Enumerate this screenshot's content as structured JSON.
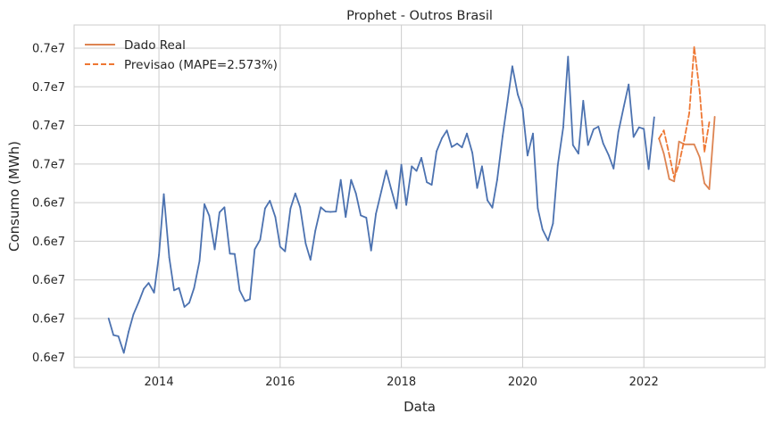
{
  "chart_data": {
    "type": "line",
    "title": "Prophet - Outros Brasil",
    "xlabel": "Data",
    "ylabel": "Consumo (MWh)",
    "x_ticks": [
      {
        "value": 2014,
        "label": "2014"
      },
      {
        "value": 2016,
        "label": "2016"
      },
      {
        "value": 2018,
        "label": "2018"
      },
      {
        "value": 2020,
        "label": "2020"
      },
      {
        "value": 2022,
        "label": "2022"
      }
    ],
    "y_ticks": [
      {
        "value": 0,
        "label": "0.6e7"
      },
      {
        "value": 1,
        "label": "0.6e7"
      },
      {
        "value": 2,
        "label": "0.6e7"
      },
      {
        "value": 3,
        "label": "0.6e7"
      },
      {
        "value": 4,
        "label": "0.6e7"
      },
      {
        "value": 5,
        "label": "0.7e7"
      },
      {
        "value": 6,
        "label": "0.7e7"
      },
      {
        "value": 7,
        "label": "0.7e7"
      },
      {
        "value": 8,
        "label": "0.7e7"
      }
    ],
    "xlim": [
      2012.6,
      2024.0
    ],
    "ylim": [
      -0.27,
      8.6
    ],
    "grid": true,
    "legend_position": "top-left",
    "legend": [
      {
        "label": "Dado Real",
        "style": "solid",
        "color": "#dd8452"
      },
      {
        "label": "Previsao (MAPE=2.573%)",
        "style": "dashed",
        "color": "#ee7733"
      }
    ],
    "series": [
      {
        "style": "solid",
        "color": "#4c72b0",
        "x": [
          2013.17,
          2013.25,
          2013.33,
          2013.42,
          2013.5,
          2013.58,
          2013.67,
          2013.75,
          2013.83,
          2013.92,
          2014.0,
          2014.08,
          2014.17,
          2014.25,
          2014.33,
          2014.42,
          2014.5,
          2014.58,
          2014.67,
          2014.75,
          2014.83,
          2014.92,
          2015.0,
          2015.08,
          2015.17,
          2015.25,
          2015.33,
          2015.42,
          2015.5,
          2015.58,
          2015.67,
          2015.75,
          2015.83,
          2015.92,
          2016.0,
          2016.08,
          2016.17,
          2016.25,
          2016.33,
          2016.42,
          2016.5,
          2016.58,
          2016.67,
          2016.75,
          2016.83,
          2016.92,
          2017.0,
          2017.08,
          2017.17,
          2017.25,
          2017.33,
          2017.42,
          2017.5,
          2017.58,
          2017.67,
          2017.75,
          2017.83,
          2017.92,
          2018.0,
          2018.08,
          2018.17,
          2018.25,
          2018.33,
          2018.42,
          2018.5,
          2018.58,
          2018.67,
          2018.75,
          2018.83,
          2018.92,
          2019.0,
          2019.08,
          2019.17,
          2019.25,
          2019.33,
          2019.42,
          2019.5,
          2019.58,
          2019.67,
          2019.75,
          2019.83,
          2019.92,
          2020.0,
          2020.08,
          2020.17,
          2020.25,
          2020.33,
          2020.42,
          2020.5,
          2020.58,
          2020.67,
          2020.75,
          2020.83,
          2020.92,
          2021.0,
          2021.08,
          2021.17,
          2021.25,
          2021.33,
          2021.42,
          2021.5,
          2021.58,
          2021.67,
          2021.75,
          2021.83,
          2021.92,
          2022.0,
          2022.08,
          2022.17
        ],
        "y": [
          1.0,
          0.57,
          0.54,
          0.11,
          0.66,
          1.11,
          1.44,
          1.77,
          1.92,
          1.67,
          2.65,
          4.22,
          2.58,
          1.73,
          1.79,
          1.3,
          1.41,
          1.79,
          2.49,
          3.96,
          3.66,
          2.79,
          3.75,
          3.88,
          2.68,
          2.67,
          1.73,
          1.45,
          1.5,
          2.79,
          3.04,
          3.85,
          4.05,
          3.63,
          2.86,
          2.74,
          3.85,
          4.24,
          3.88,
          2.94,
          2.52,
          3.27,
          3.88,
          3.77,
          3.76,
          3.77,
          4.59,
          3.63,
          4.59,
          4.24,
          3.67,
          3.61,
          2.76,
          3.71,
          4.3,
          4.83,
          4.36,
          3.85,
          4.98,
          3.94,
          4.94,
          4.82,
          5.16,
          4.53,
          4.46,
          5.33,
          5.67,
          5.87,
          5.44,
          5.53,
          5.43,
          5.79,
          5.29,
          4.38,
          4.94,
          4.06,
          3.87,
          4.59,
          5.72,
          6.6,
          7.53,
          6.8,
          6.43,
          5.22,
          5.79,
          3.85,
          3.3,
          3.02,
          3.46,
          4.97,
          5.95,
          7.78,
          5.49,
          5.27,
          6.64,
          5.49,
          5.9,
          5.97,
          5.53,
          5.23,
          4.88,
          5.83,
          6.49,
          7.06,
          5.7,
          5.95,
          5.91,
          4.87,
          6.21
        ]
      },
      {
        "style": "solid",
        "color": "#dd8452",
        "x": [
          2022.25,
          2022.33,
          2022.42,
          2022.5,
          2022.58,
          2022.67,
          2022.75,
          2022.83,
          2022.92,
          2023.0,
          2023.08,
          2023.17
        ],
        "y": [
          5.66,
          5.27,
          4.61,
          4.55,
          5.58,
          5.51,
          5.51,
          5.51,
          5.18,
          4.5,
          4.35,
          6.22
        ]
      },
      {
        "style": "dashed",
        "color": "#ee7733",
        "x": [
          2022.25,
          2022.33,
          2022.42,
          2022.5,
          2022.58,
          2022.67,
          2022.75,
          2022.83,
          2022.92,
          2023.0,
          2023.08
        ],
        "y": [
          5.66,
          5.87,
          5.24,
          4.64,
          5.0,
          5.65,
          6.32,
          8.03,
          6.89,
          5.32,
          6.08
        ]
      }
    ]
  }
}
